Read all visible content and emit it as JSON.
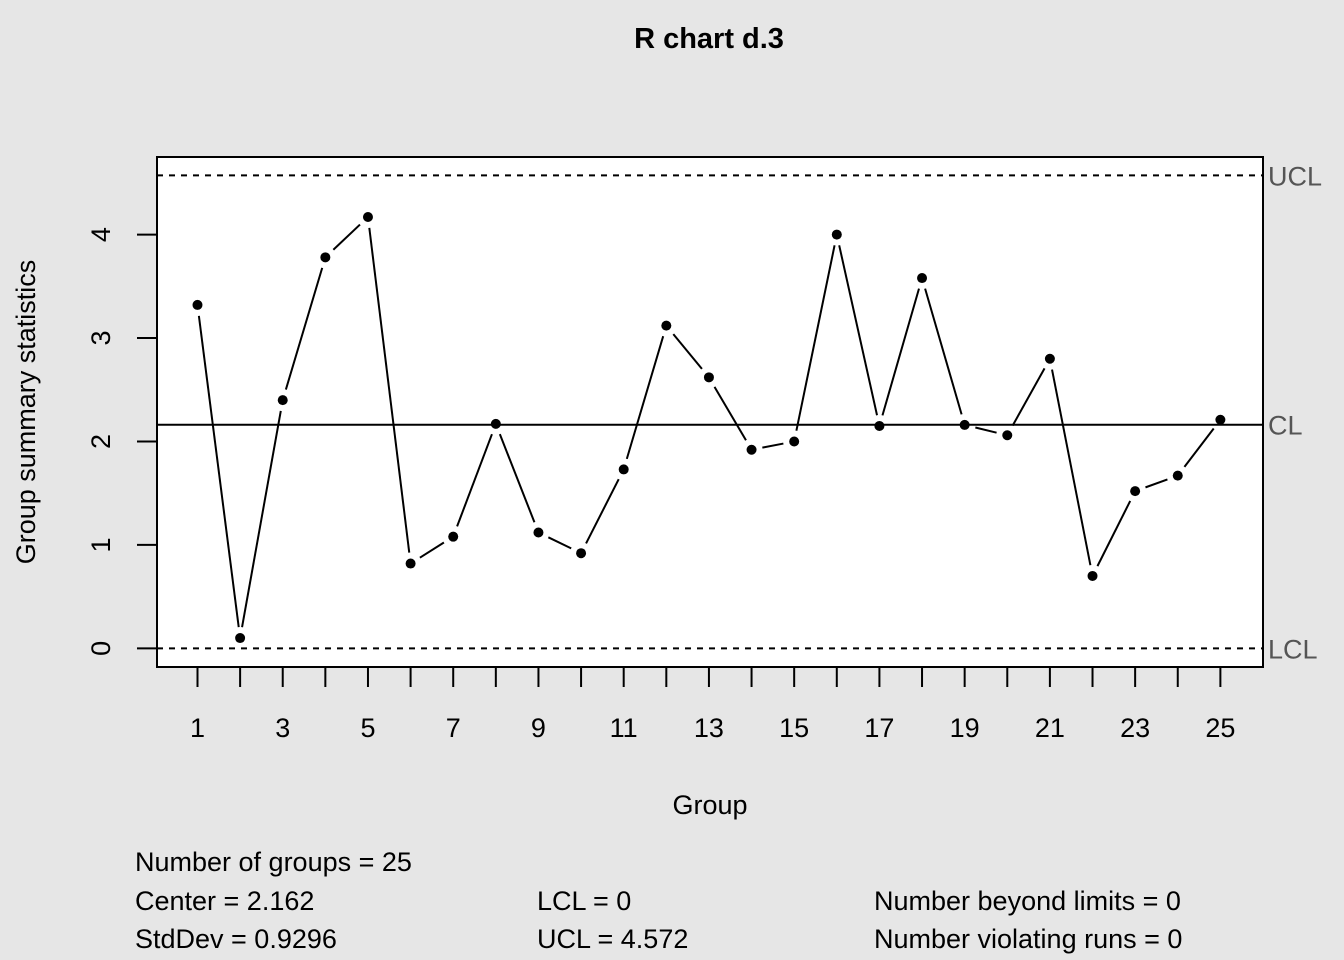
{
  "chart_data": {
    "type": "line",
    "title": "R chart d.3",
    "xlabel": "Group",
    "ylabel": "Group summary statistics",
    "x": [
      1,
      2,
      3,
      4,
      5,
      6,
      7,
      8,
      9,
      10,
      11,
      12,
      13,
      14,
      15,
      16,
      17,
      18,
      19,
      20,
      21,
      22,
      23,
      24,
      25
    ],
    "values": [
      3.32,
      0.1,
      2.4,
      3.78,
      4.17,
      0.82,
      1.08,
      2.17,
      1.12,
      0.92,
      1.73,
      3.12,
      2.62,
      1.92,
      2.0,
      4.0,
      2.15,
      3.58,
      2.16,
      2.06,
      2.8,
      0.7,
      1.52,
      1.67,
      2.21
    ],
    "xlim": [
      0.05,
      26.0
    ],
    "ylim": [
      -0.18,
      4.75
    ],
    "x_ticks": [
      1,
      2,
      3,
      4,
      5,
      6,
      7,
      8,
      9,
      10,
      11,
      12,
      13,
      14,
      15,
      16,
      17,
      18,
      19,
      20,
      21,
      22,
      23,
      24,
      25
    ],
    "x_tick_labels": [
      "1",
      "3",
      "5",
      "7",
      "9",
      "11",
      "13",
      "15",
      "17",
      "19",
      "21",
      "23",
      "25"
    ],
    "x_tick_label_values": [
      1,
      3,
      5,
      7,
      9,
      11,
      13,
      15,
      17,
      19,
      21,
      23,
      25
    ],
    "y_ticks": [
      0,
      1,
      2,
      3,
      4
    ],
    "y_tick_labels": [
      "0",
      "1",
      "2",
      "3",
      "4"
    ],
    "center": 2.162,
    "lcl": 0,
    "ucl": 4.572,
    "limit_labels": {
      "ucl": "UCL",
      "cl": "CL",
      "lcl": "LCL"
    },
    "grid": false,
    "colors": {
      "background": "#e6e6e6",
      "plot_area": "#ffffff",
      "line": "#000000",
      "limit_label": "#555555"
    }
  },
  "stats": {
    "num_groups": "Number of groups = 25",
    "center": "Center = 2.162",
    "stddev": "StdDev = 0.9296",
    "lcl": "LCL = 0",
    "ucl": "UCL = 4.572",
    "beyond_limits": "Number beyond limits = 0",
    "violating_runs": "Number violating runs = 0"
  }
}
